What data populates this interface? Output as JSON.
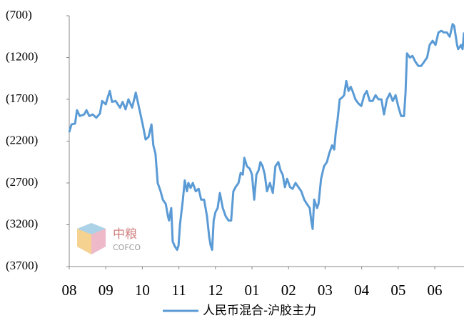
{
  "chart_data": {
    "type": "line",
    "x": [
      0,
      0.06,
      0.16,
      0.21,
      0.29,
      0.41,
      0.47,
      0.55,
      0.64,
      0.74,
      0.84,
      0.9,
      1.0,
      1.05,
      1.11,
      1.17,
      1.27,
      1.39,
      1.46,
      1.54,
      1.62,
      1.72,
      1.82,
      1.91,
      2.01,
      2.09,
      2.17,
      2.25,
      2.3,
      2.36,
      2.42,
      2.5,
      2.56,
      2.64,
      2.7,
      2.73,
      2.79,
      2.83,
      2.89,
      2.95,
      2.99,
      3.03,
      3.11,
      3.16,
      3.22,
      3.26,
      3.32,
      3.38,
      3.46,
      3.54,
      3.61,
      3.69,
      3.77,
      3.83,
      3.87,
      3.91,
      3.95,
      4.0,
      4.06,
      4.12,
      4.2,
      4.28,
      4.36,
      4.43,
      4.49,
      4.55,
      4.63,
      4.69,
      4.75,
      4.79,
      4.86,
      4.94,
      5.0,
      5.06,
      5.12,
      5.18,
      5.23,
      5.29,
      5.35,
      5.41,
      5.49,
      5.57,
      5.64,
      5.72,
      5.78,
      5.84,
      5.9,
      5.96,
      6.04,
      6.11,
      6.19,
      6.27,
      6.35,
      6.43,
      6.5,
      6.58,
      6.62,
      6.66,
      6.7,
      6.78,
      6.82,
      6.89,
      6.97,
      7.05,
      7.11,
      7.19,
      7.25,
      7.29,
      7.34,
      7.4,
      7.46,
      7.52,
      7.58,
      7.64,
      7.7,
      7.75,
      7.83,
      7.91,
      7.99,
      8.07,
      8.14,
      8.22,
      8.3,
      8.38,
      8.46,
      8.54,
      8.61,
      8.69,
      8.77,
      8.85,
      8.93,
      9.0,
      9.08,
      9.16,
      9.2,
      9.24,
      9.32,
      9.39,
      9.47,
      9.55,
      9.63,
      9.71,
      9.79,
      9.86,
      9.94,
      10.02,
      10.1,
      10.18,
      10.25,
      10.33,
      10.41,
      10.49,
      10.53,
      10.61,
      10.64,
      10.72,
      10.76,
      10.8
    ],
    "series": [
      {
        "name": "人民币混合-沪胶主力",
        "color": "#5b9bd5",
        "values": [
          -2093,
          -2000,
          -1990,
          -1830,
          -1900,
          -1880,
          -1830,
          -1900,
          -1880,
          -1920,
          -1870,
          -1720,
          -1760,
          -1680,
          -1600,
          -1730,
          -1720,
          -1800,
          -1730,
          -1820,
          -1700,
          -1800,
          -1620,
          -1800,
          -2000,
          -2180,
          -2150,
          -2000,
          -2250,
          -2350,
          -2700,
          -2800,
          -2900,
          -2950,
          -3100,
          -3150,
          -3000,
          -3400,
          -3460,
          -3500,
          -3450,
          -3200,
          -2900,
          -2670,
          -2800,
          -2700,
          -2760,
          -2700,
          -2800,
          -2770,
          -2900,
          -2900,
          -3100,
          -3350,
          -3450,
          -3500,
          -3150,
          -3050,
          -3000,
          -2820,
          -3000,
          -3100,
          -3150,
          -3150,
          -2800,
          -2750,
          -2700,
          -2580,
          -2600,
          -2400,
          -2500,
          -2530,
          -2600,
          -2900,
          -2600,
          -2550,
          -2450,
          -2500,
          -2600,
          -2800,
          -2700,
          -2820,
          -2500,
          -2450,
          -2550,
          -2600,
          -2750,
          -2650,
          -2750,
          -2770,
          -2700,
          -2750,
          -2800,
          -2900,
          -2950,
          -3000,
          -3150,
          -3250,
          -2900,
          -3000,
          -2950,
          -2650,
          -2500,
          -2450,
          -2350,
          -2250,
          -2300,
          -2100,
          -1950,
          -1700,
          -1680,
          -1650,
          -1480,
          -1600,
          -1550,
          -1600,
          -1700,
          -1750,
          -1780,
          -1650,
          -1600,
          -1720,
          -1720,
          -1650,
          -1700,
          -1700,
          -1880,
          -1700,
          -1630,
          -1720,
          -1650,
          -1780,
          -1900,
          -1900,
          -1620,
          -1150,
          -1200,
          -1180,
          -1250,
          -1300,
          -1300,
          -1250,
          -1200,
          -1050,
          -1000,
          -1050,
          -900,
          -880,
          -900,
          -900,
          -950,
          -800,
          -820,
          -1050,
          -1100,
          -1050,
          -1100,
          -900
        ]
      }
    ],
    "xlim": [
      0,
      10.8
    ],
    "xticks": [
      {
        "value": 0,
        "label": "08"
      },
      {
        "value": 1,
        "label": "09"
      },
      {
        "value": 2,
        "label": "10"
      },
      {
        "value": 3,
        "label": "11"
      },
      {
        "value": 4,
        "label": "12"
      },
      {
        "value": 5,
        "label": "01"
      },
      {
        "value": 6,
        "label": "02"
      },
      {
        "value": 7,
        "label": "03"
      },
      {
        "value": 8,
        "label": "04"
      },
      {
        "value": 9,
        "label": "05"
      },
      {
        "value": 10,
        "label": "06"
      }
    ],
    "ylim": [
      -3700,
      -700
    ],
    "yticks": [
      {
        "value": -700,
        "label": "(700)"
      },
      {
        "value": -1200,
        "label": "(1200)"
      },
      {
        "value": -1700,
        "label": "(1700)"
      },
      {
        "value": -2200,
        "label": "(2200)"
      },
      {
        "value": -2700,
        "label": "(2700)"
      },
      {
        "value": -3200,
        "label": "(3200)"
      },
      {
        "value": -3700,
        "label": "(3700)"
      }
    ],
    "legend": "bottom",
    "watermark": [
      "中粮",
      "COFCO"
    ]
  }
}
